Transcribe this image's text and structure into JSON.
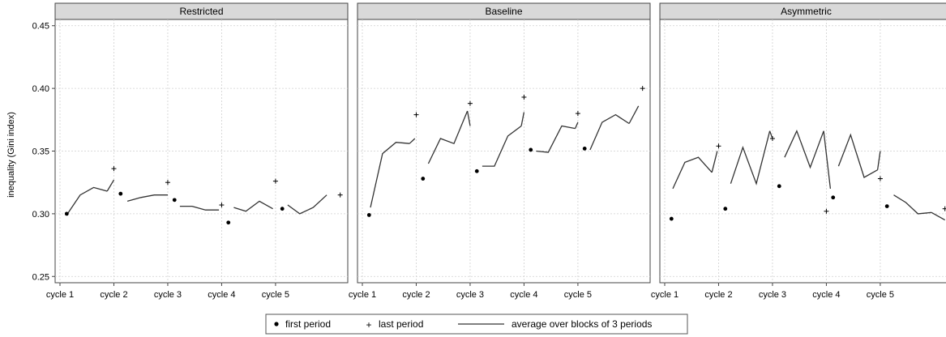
{
  "chart_data": {
    "type": "line",
    "ylabel": "inequality (Gini index)",
    "ylim": [
      0.245,
      0.455
    ],
    "yticks": [
      0.25,
      0.3,
      0.35,
      0.4,
      0.45
    ],
    "ytick_labels": [
      "0.25",
      "0.30",
      "0.35",
      "0.40",
      "0.45"
    ],
    "xlim": [
      0,
      21
    ],
    "xticks": [
      0,
      4,
      8,
      12,
      16
    ],
    "xtick_labels": [
      "cycle 1",
      "cycle 2",
      "cycle 3",
      "cycle 4",
      "cycle 5"
    ],
    "grid": true,
    "legend_position": "bottom",
    "legend": {
      "first": "first period",
      "last": "last period",
      "avg": "average over blocks of 3 periods"
    },
    "panels": [
      {
        "name": "Restricted",
        "first_period": [
          {
            "x": 0.5,
            "y": 0.3
          },
          {
            "x": 4.5,
            "y": 0.316
          },
          {
            "x": 8.5,
            "y": 0.311
          },
          {
            "x": 12.5,
            "y": 0.293
          },
          {
            "x": 16.5,
            "y": 0.304
          }
        ],
        "last_period": [
          {
            "x": 4.0,
            "y": 0.336
          },
          {
            "x": 8.0,
            "y": 0.325
          },
          {
            "x": 12.0,
            "y": 0.307
          },
          {
            "x": 16.0,
            "y": 0.326
          },
          {
            "x": 20.8,
            "y": 0.315
          }
        ],
        "average_blocks": [
          {
            "x": [
              0.5,
              1.5,
              2.5,
              3.5
            ],
            "y": [
              0.299,
              0.315,
              0.321,
              0.318
            ]
          },
          {
            "x": 3.5,
            "y": 0.318,
            "xs": [
              3.5,
              4.0
            ],
            "ys": [
              0.318,
              0.327
            ]
          },
          {
            "x": [
              5.0,
              6.0,
              7.0,
              8.0
            ],
            "y": [
              0.31,
              0.313,
              0.315,
              0.315
            ]
          },
          {
            "x": [
              8.9,
              9.8,
              10.8,
              11.8
            ],
            "y": [
              0.306,
              0.306,
              0.303,
              0.303
            ]
          },
          {
            "x": [
              12.9,
              13.8,
              14.8,
              15.8
            ],
            "y": [
              0.305,
              0.302,
              0.31,
              0.304
            ]
          },
          {
            "x": [
              16.9,
              17.8,
              18.8,
              19.8
            ],
            "y": [
              0.307,
              0.3,
              0.305,
              0.315
            ]
          }
        ]
      },
      {
        "name": "Baseline",
        "first_period": [
          {
            "x": 0.5,
            "y": 0.299
          },
          {
            "x": 4.5,
            "y": 0.328
          },
          {
            "x": 8.5,
            "y": 0.334
          },
          {
            "x": 12.5,
            "y": 0.351
          },
          {
            "x": 16.5,
            "y": 0.352
          }
        ],
        "last_period": [
          {
            "x": 4.0,
            "y": 0.379
          },
          {
            "x": 8.0,
            "y": 0.388
          },
          {
            "x": 12.0,
            "y": 0.393
          },
          {
            "x": 16.0,
            "y": 0.38
          },
          {
            "x": 20.8,
            "y": 0.4
          }
        ],
        "average_blocks": [
          {
            "x": [
              0.6,
              1.5,
              2.5,
              3.5
            ],
            "y": [
              0.305,
              0.348,
              0.357,
              0.356
            ]
          },
          {
            "x": [
              3.5,
              3.9
            ],
            "y": [
              0.356,
              0.36
            ]
          },
          {
            "x": [
              4.9,
              5.8,
              6.8,
              7.8
            ],
            "y": [
              0.34,
              0.36,
              0.356,
              0.382
            ]
          },
          {
            "x": [
              7.8,
              8.0
            ],
            "y": [
              0.382,
              0.37
            ]
          },
          {
            "x": [
              8.9,
              9.8,
              10.8,
              11.8
            ],
            "y": [
              0.338,
              0.338,
              0.362,
              0.37
            ]
          },
          {
            "x": [
              11.8,
              12.0
            ],
            "y": [
              0.37,
              0.381
            ]
          },
          {
            "x": [
              12.9,
              13.8,
              14.8,
              15.8
            ],
            "y": [
              0.35,
              0.349,
              0.37,
              0.368
            ]
          },
          {
            "x": [
              15.8,
              16.0
            ],
            "y": [
              0.368,
              0.373
            ]
          },
          {
            "x": [
              16.9,
              17.8,
              18.8,
              19.8
            ],
            "y": [
              0.351,
              0.373,
              0.379,
              0.372
            ]
          },
          {
            "x": [
              19.8,
              20.5
            ],
            "y": [
              0.372,
              0.386
            ]
          }
        ]
      },
      {
        "name": "Asymmetric",
        "first_period": [
          {
            "x": 0.5,
            "y": 0.296
          },
          {
            "x": 4.5,
            "y": 0.304
          },
          {
            "x": 8.5,
            "y": 0.322
          },
          {
            "x": 12.5,
            "y": 0.313
          },
          {
            "x": 16.5,
            "y": 0.306
          }
        ],
        "last_period": [
          {
            "x": 4.0,
            "y": 0.354
          },
          {
            "x": 8.0,
            "y": 0.36
          },
          {
            "x": 12.0,
            "y": 0.302
          },
          {
            "x": 16.0,
            "y": 0.328
          },
          {
            "x": 20.8,
            "y": 0.304
          }
        ],
        "average_blocks": [
          {
            "x": [
              0.6,
              1.5,
              2.5,
              3.5
            ],
            "y": [
              0.32,
              0.341,
              0.345,
              0.333
            ]
          },
          {
            "x": [
              3.5,
              3.9
            ],
            "y": [
              0.333,
              0.35
            ]
          },
          {
            "x": [
              4.9,
              5.8,
              6.8,
              7.8
            ],
            "y": [
              0.324,
              0.353,
              0.324,
              0.366
            ]
          },
          {
            "x": [
              7.8,
              8.0
            ],
            "y": [
              0.366,
              0.36
            ]
          },
          {
            "x": [
              8.9,
              9.8,
              10.8,
              11.8
            ],
            "y": [
              0.345,
              0.366,
              0.337,
              0.366
            ]
          },
          {
            "x": [
              11.8,
              12.3
            ],
            "y": [
              0.366,
              0.32
            ]
          },
          {
            "x": [
              12.9,
              13.8,
              14.8,
              15.8
            ],
            "y": [
              0.338,
              0.363,
              0.329,
              0.335
            ]
          },
          {
            "x": [
              15.8,
              16.0
            ],
            "y": [
              0.335,
              0.35
            ]
          },
          {
            "x": [
              17.0,
              17.9,
              18.8,
              19.8
            ],
            "y": [
              0.315,
              0.309,
              0.3,
              0.301
            ]
          },
          {
            "x": [
              19.8,
              20.8
            ],
            "y": [
              0.301,
              0.295
            ]
          }
        ]
      }
    ]
  }
}
